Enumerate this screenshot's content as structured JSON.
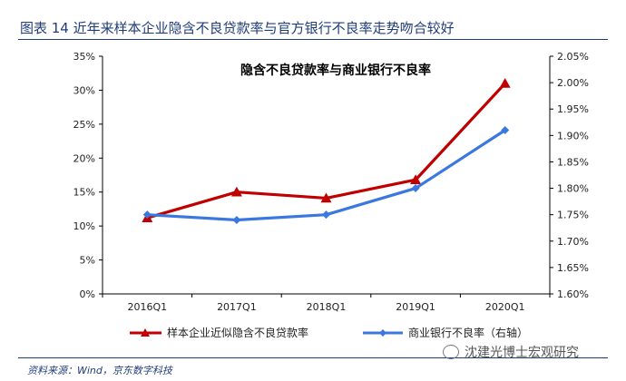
{
  "figure": {
    "title": "图表 14 近年来样本企业隐含不良贷款率与官方银行不良率走势吻合较好",
    "source": "资料来源：Wind，京东数字科技",
    "watermark": "沈建光博士宏观研究"
  },
  "chart_data": {
    "type": "line",
    "title": "隐含不良贷款率与商业银行不良率",
    "categories": [
      "2016Q1",
      "2017Q1",
      "2018Q1",
      "2019Q1",
      "2020Q1"
    ],
    "y_left": {
      "min": 0,
      "max": 35,
      "step": 5,
      "ticks": [
        "0%",
        "5%",
        "10%",
        "15%",
        "20%",
        "25%",
        "30%",
        "35%"
      ]
    },
    "y_right": {
      "min": 1.6,
      "max": 2.05,
      "step": 0.05,
      "ticks": [
        "1.60%",
        "1.65%",
        "1.70%",
        "1.75%",
        "1.80%",
        "1.85%",
        "1.90%",
        "1.95%",
        "2.00%",
        "2.05%"
      ]
    },
    "series": [
      {
        "name": "样本企业近似隐含不良贷款率",
        "axis": "left",
        "color": "#c00000",
        "marker": "triangle",
        "values": [
          11.2,
          15.0,
          14.1,
          16.8,
          31.0
        ]
      },
      {
        "name": "商业银行不良率（右轴）",
        "axis": "right",
        "color": "#3a78e0",
        "marker": "diamond",
        "values": [
          1.75,
          1.74,
          1.75,
          1.8,
          1.91
        ]
      }
    ],
    "grid": false,
    "legend": "bottom"
  }
}
